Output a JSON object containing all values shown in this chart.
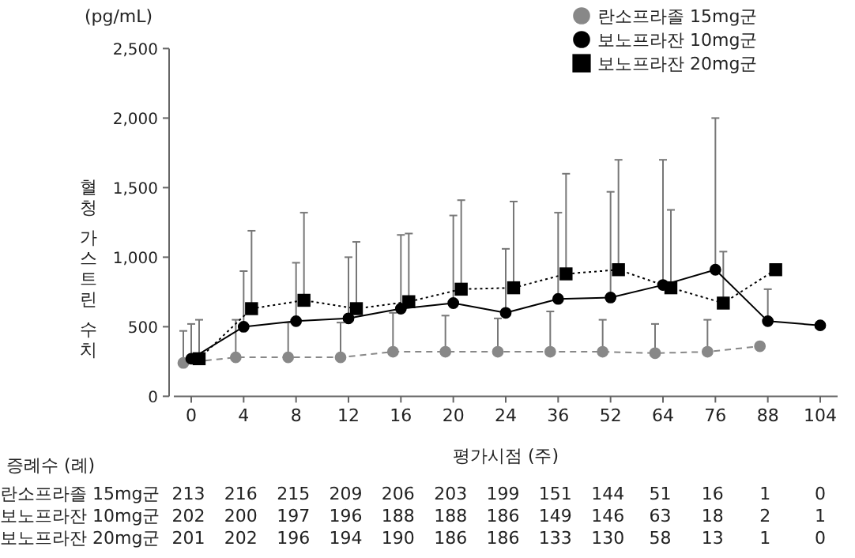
{
  "chart_data": {
    "type": "line",
    "ylabel": "혈청 가스트린 수치",
    "xlabel": "평가시점 (주)",
    "categories": [
      "0",
      "4",
      "8",
      "12",
      "16",
      "20",
      "24",
      "36",
      "52",
      "64",
      "76",
      "88",
      "104"
    ],
    "ylim": [
      0,
      2500
    ],
    "yticks": [
      0,
      500,
      {
        "value": 1000,
        "label": "1,000"
      },
      {
        "value": 1500,
        "label": "1,500"
      },
      {
        "value": 2000,
        "label": "2,000"
      },
      {
        "value": 2500,
        "label": "2,500"
      }
    ],
    "legend": "top right",
    "series": [
      {
        "name": "란소프라졸 15mg군",
        "color": "#888888",
        "marker": "circle",
        "line_style": "dashed",
        "values": [
          240,
          280,
          280,
          280,
          320,
          320,
          320,
          320,
          320,
          310,
          320,
          360,
          null
        ],
        "errors": [
          [
            240,
            470
          ],
          [
            280,
            550
          ],
          [
            280,
            530
          ],
          [
            280,
            530
          ],
          [
            320,
            600
          ],
          [
            320,
            580
          ],
          [
            320,
            560
          ],
          [
            320,
            610
          ],
          [
            320,
            550
          ],
          [
            310,
            520
          ],
          [
            320,
            550
          ],
          null,
          null
        ]
      },
      {
        "name": "보노프라잔 10mg군",
        "color": "#000000",
        "marker": "circle",
        "line_style": "solid",
        "values": [
          270,
          500,
          540,
          560,
          630,
          670,
          600,
          700,
          710,
          800,
          910,
          540,
          510
        ],
        "errors": [
          [
            270,
            520
          ],
          [
            500,
            900
          ],
          [
            540,
            960
          ],
          [
            560,
            1000
          ],
          [
            630,
            1160
          ],
          [
            670,
            1300
          ],
          [
            600,
            1060
          ],
          [
            700,
            1320
          ],
          [
            710,
            1470
          ],
          [
            800,
            1700
          ],
          [
            910,
            2000
          ],
          [
            540,
            770
          ],
          null
        ]
      },
      {
        "name": "보노프라잔 20mg군",
        "color": "#000000",
        "marker": "square",
        "line_style": "dotted",
        "values": [
          270,
          630,
          690,
          630,
          680,
          770,
          780,
          880,
          910,
          780,
          670,
          910,
          null
        ],
        "errors": [
          [
            270,
            550
          ],
          [
            630,
            1190
          ],
          [
            690,
            1320
          ],
          [
            630,
            1110
          ],
          [
            680,
            1170
          ],
          [
            770,
            1410
          ],
          [
            780,
            1400
          ],
          [
            880,
            1600
          ],
          [
            910,
            1700
          ],
          [
            780,
            1340
          ],
          [
            670,
            1040
          ],
          null,
          null
        ]
      }
    ],
    "annotations": [
      "(pg/mL)",
      "증례수 (례)",
      "란소프라졸 15mg군 213 216 215 209 206 203 199 151 144 51 16 1 0",
      "보노프라잔 10mg군 202 200 197 196 188 188 186 149 146 63 18 2 1",
      "보노프라잔 20mg군 201 202 196 194 190 186 186 133 130 58 13 1 0"
    ]
  }
}
